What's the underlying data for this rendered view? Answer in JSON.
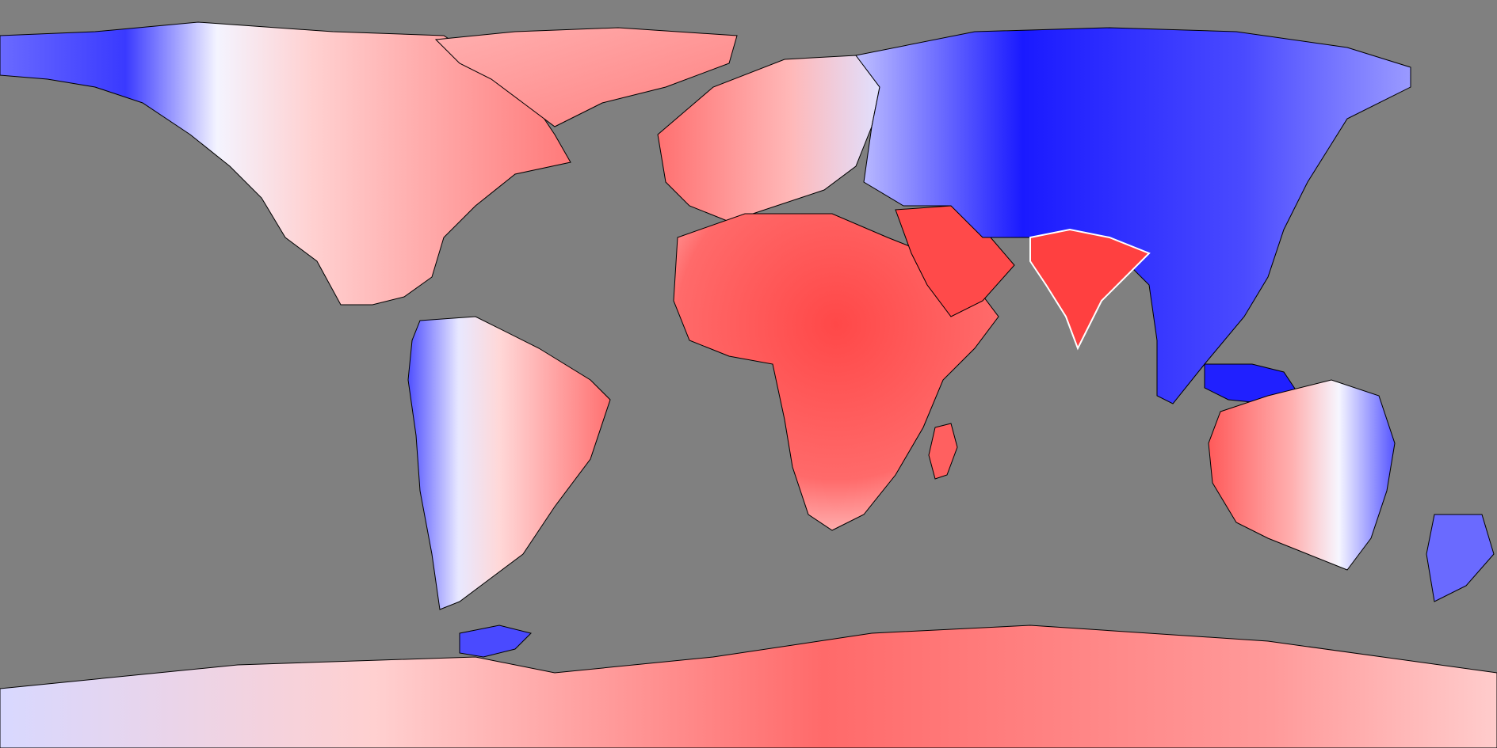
{
  "map": {
    "projection": "equirectangular",
    "background_color": "#808080",
    "coastline_color": "#000000",
    "palette": {
      "strong_negative": "#0000ff",
      "negative": "#8080ff",
      "neutral": "#ffffff",
      "positive": "#ff8080",
      "strong_positive": "#ff3333"
    },
    "features": [
      {
        "name": "north-america",
        "tone": "mixed-west-blue-east-red"
      },
      {
        "name": "greenland",
        "tone": "positive"
      },
      {
        "name": "south-america",
        "tone": "mixed-west-blue-east-red"
      },
      {
        "name": "europe",
        "tone": "positive"
      },
      {
        "name": "africa",
        "tone": "strong_positive"
      },
      {
        "name": "arabia",
        "tone": "strong_positive"
      },
      {
        "name": "india",
        "tone": "strong_positive"
      },
      {
        "name": "asia",
        "tone": "strong_negative"
      },
      {
        "name": "southeast-asia",
        "tone": "strong_negative"
      },
      {
        "name": "australia",
        "tone": "mixed-west-red-east-blue"
      },
      {
        "name": "new-zealand",
        "tone": "negative"
      },
      {
        "name": "antarctica",
        "tone": "positive"
      }
    ]
  }
}
